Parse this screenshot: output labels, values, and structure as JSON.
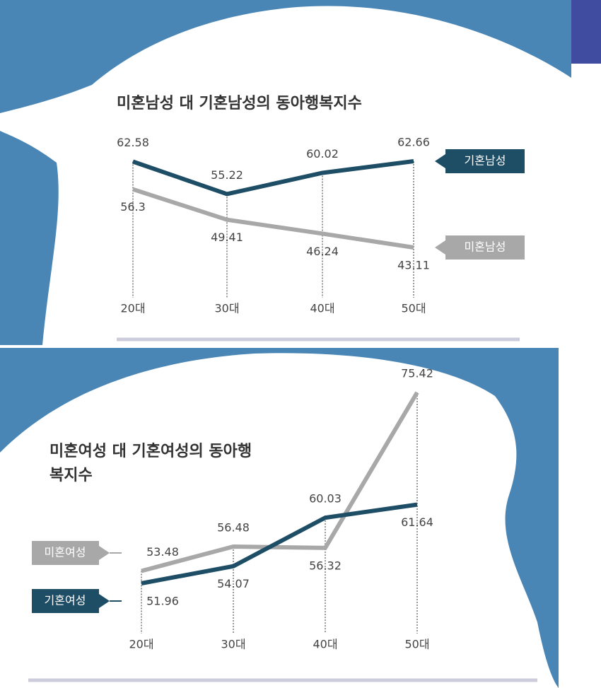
{
  "chart_data": [
    {
      "type": "line",
      "title": "미혼남성 대 기혼남성의 동아행복지수",
      "categories": [
        "20대",
        "30대",
        "40대",
        "50대"
      ],
      "series": [
        {
          "name": "기혼남성",
          "color": "#1e4d66",
          "values": [
            62.58,
            55.22,
            60.02,
            62.66
          ]
        },
        {
          "name": "미혼남성",
          "color": "#a8a8a8",
          "values": [
            56.3,
            49.41,
            46.24,
            43.11
          ]
        }
      ]
    },
    {
      "type": "line",
      "title": "미혼여성 대 기혼여성의 동아행복지수",
      "categories": [
        "20대",
        "30대",
        "40대",
        "50대"
      ],
      "series": [
        {
          "name": "미혼여성",
          "color": "#a8a8a8",
          "values": [
            53.48,
            56.48,
            56.32,
            75.42
          ]
        },
        {
          "name": "기혼여성",
          "color": "#1e4d66",
          "values": [
            51.96,
            54.07,
            60.03,
            61.64
          ]
        }
      ]
    }
  ]
}
